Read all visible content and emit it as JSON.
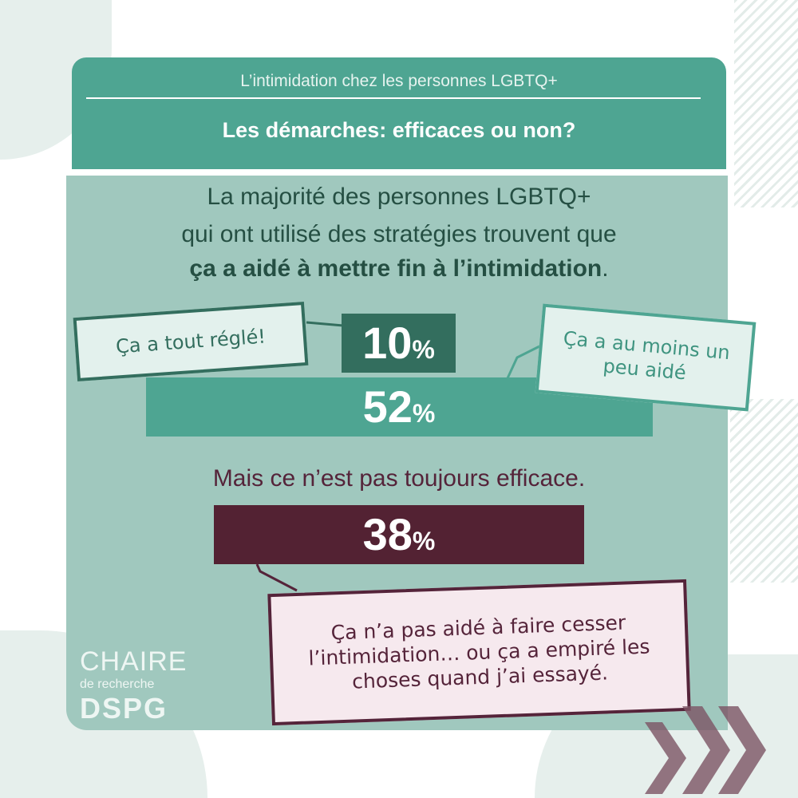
{
  "header": {
    "subtitle": "L’intimidation chez les personnes LGBTQ+",
    "title": "Les démarches: efficaces ou non?"
  },
  "intro": {
    "line1": "La majorité des personnes LGBTQ+",
    "line2": "qui ont utilisé des stratégies trouvent que",
    "line3_bold": "ça a aidé à mettre fin à l’intimidation",
    "line3_end": "."
  },
  "contrast_text": "Mais ce n’est pas toujours efficace.",
  "callouts": {
    "all_solved": "Ça a tout réglé!",
    "helped_a_bit": "Ça a au moins un peu aidé",
    "not_helped": "Ça n’a pas aidé à faire cesser l’intimidation… ou ça a empiré les choses quand j’ai essayé."
  },
  "logo": {
    "line1": "CHAIRE",
    "line2": "de recherche",
    "line3": "DSPG"
  },
  "colors": {
    "dark_green": "#336e5e",
    "green": "#4ea592",
    "panel": "#a0c8be",
    "burgundy": "#532233"
  },
  "chart_data": {
    "type": "bar",
    "categories": [
      "Ça a tout réglé!",
      "Ça a au moins un peu aidé",
      "Ça n’a pas aidé à faire cesser l’intimidation… ou ça a empiré les choses quand j’ai essayé."
    ],
    "values": [
      10,
      52,
      38
    ],
    "labels": {
      "v10": "10",
      "v52": "52",
      "v38": "38",
      "unit": "%"
    },
    "unit": "%"
  }
}
